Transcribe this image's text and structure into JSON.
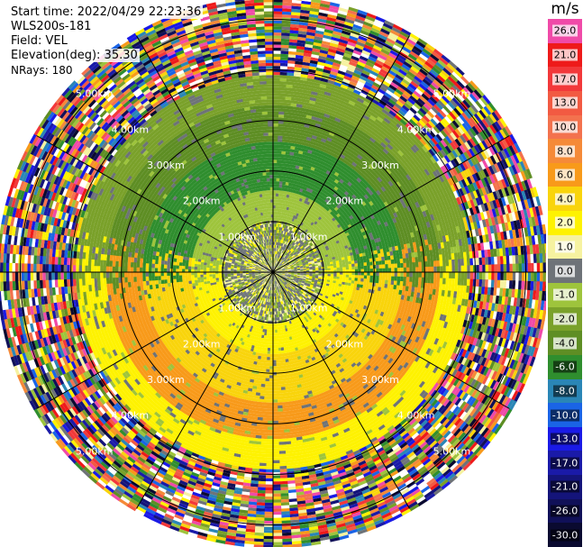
{
  "header": {
    "start_time": "Start time: 2022/04/29 22:23:36",
    "instrument": "WLS200s-181",
    "field": "Field: VEL",
    "elevation": "Elevation(deg): 35.30",
    "nrays": "NRays: 180"
  },
  "colorbar": {
    "unit": "m/s",
    "levels": [
      {
        "label": "26.0",
        "color": "#f04aa8"
      },
      {
        "label": "21.0",
        "color": "#ee1a1a"
      },
      {
        "label": "17.0",
        "color": "#f2383a"
      },
      {
        "label": "13.0",
        "color": "#f25a42"
      },
      {
        "label": "10.0",
        "color": "#f3724e"
      },
      {
        "label": "8.0",
        "color": "#f58a38"
      },
      {
        "label": "6.0",
        "color": "#f89a1a"
      },
      {
        "label": "4.0",
        "color": "#f9d40c"
      },
      {
        "label": "2.0",
        "color": "#fef200"
      },
      {
        "label": "1.0",
        "color": "#f6f2a0"
      },
      {
        "label": "0.0",
        "color": "#6e7378"
      },
      {
        "label": "-1.0",
        "color": "#9ec43c"
      },
      {
        "label": "-2.0",
        "color": "#7aa12a"
      },
      {
        "label": "-4.0",
        "color": "#5e8e24"
      },
      {
        "label": "-6.0",
        "color": "#2f8e2e"
      },
      {
        "label": "-8.0",
        "color": "#2a86b6"
      },
      {
        "label": "-10.0",
        "color": "#1a64e6"
      },
      {
        "label": "-13.0",
        "color": "#1a1ae6"
      },
      {
        "label": "-17.0",
        "color": "#1a1aa8"
      },
      {
        "label": "-21.0",
        "color": "#14147a"
      },
      {
        "label": "-26.0",
        "color": "#101058"
      },
      {
        "label": "-30.0",
        "color": "#0a0a30"
      }
    ]
  },
  "chart_data": {
    "type": "heatmap",
    "subtype": "ppi-polar",
    "field": "VEL",
    "unit": "m/s",
    "nrays": 180,
    "range_rings_km": [
      1.0,
      2.0,
      3.0,
      4.0,
      5.0
    ],
    "range_ring_labels": [
      "1.00km",
      "2.00km",
      "3.00km",
      "4.00km",
      "5.00km"
    ],
    "max_range_km": 5.4,
    "spokes_deg": [
      0,
      30,
      60,
      90,
      120,
      150,
      180,
      210,
      240,
      270,
      300,
      330
    ],
    "velocity_pattern": [
      {
        "range_km": [
          0.0,
          1.0
        ],
        "north_half": "0.0",
        "south_half": "0.0",
        "note": "mixed noise"
      },
      {
        "range_km": [
          1.0,
          1.6
        ],
        "north_half": "-1.0",
        "south_half": "2.0"
      },
      {
        "range_km": [
          1.6,
          2.6
        ],
        "north_half": "-6.0",
        "south_half": "4.0"
      },
      {
        "range_km": [
          2.6,
          3.3
        ],
        "north_half": "-4.0",
        "south_half": "6.0"
      },
      {
        "range_km": [
          3.3,
          3.9
        ],
        "north_half": "-2.0",
        "south_half": "2.0"
      },
      {
        "range_km": [
          3.9,
          5.4
        ],
        "north_half": "noise",
        "south_half": "noise"
      }
    ]
  }
}
